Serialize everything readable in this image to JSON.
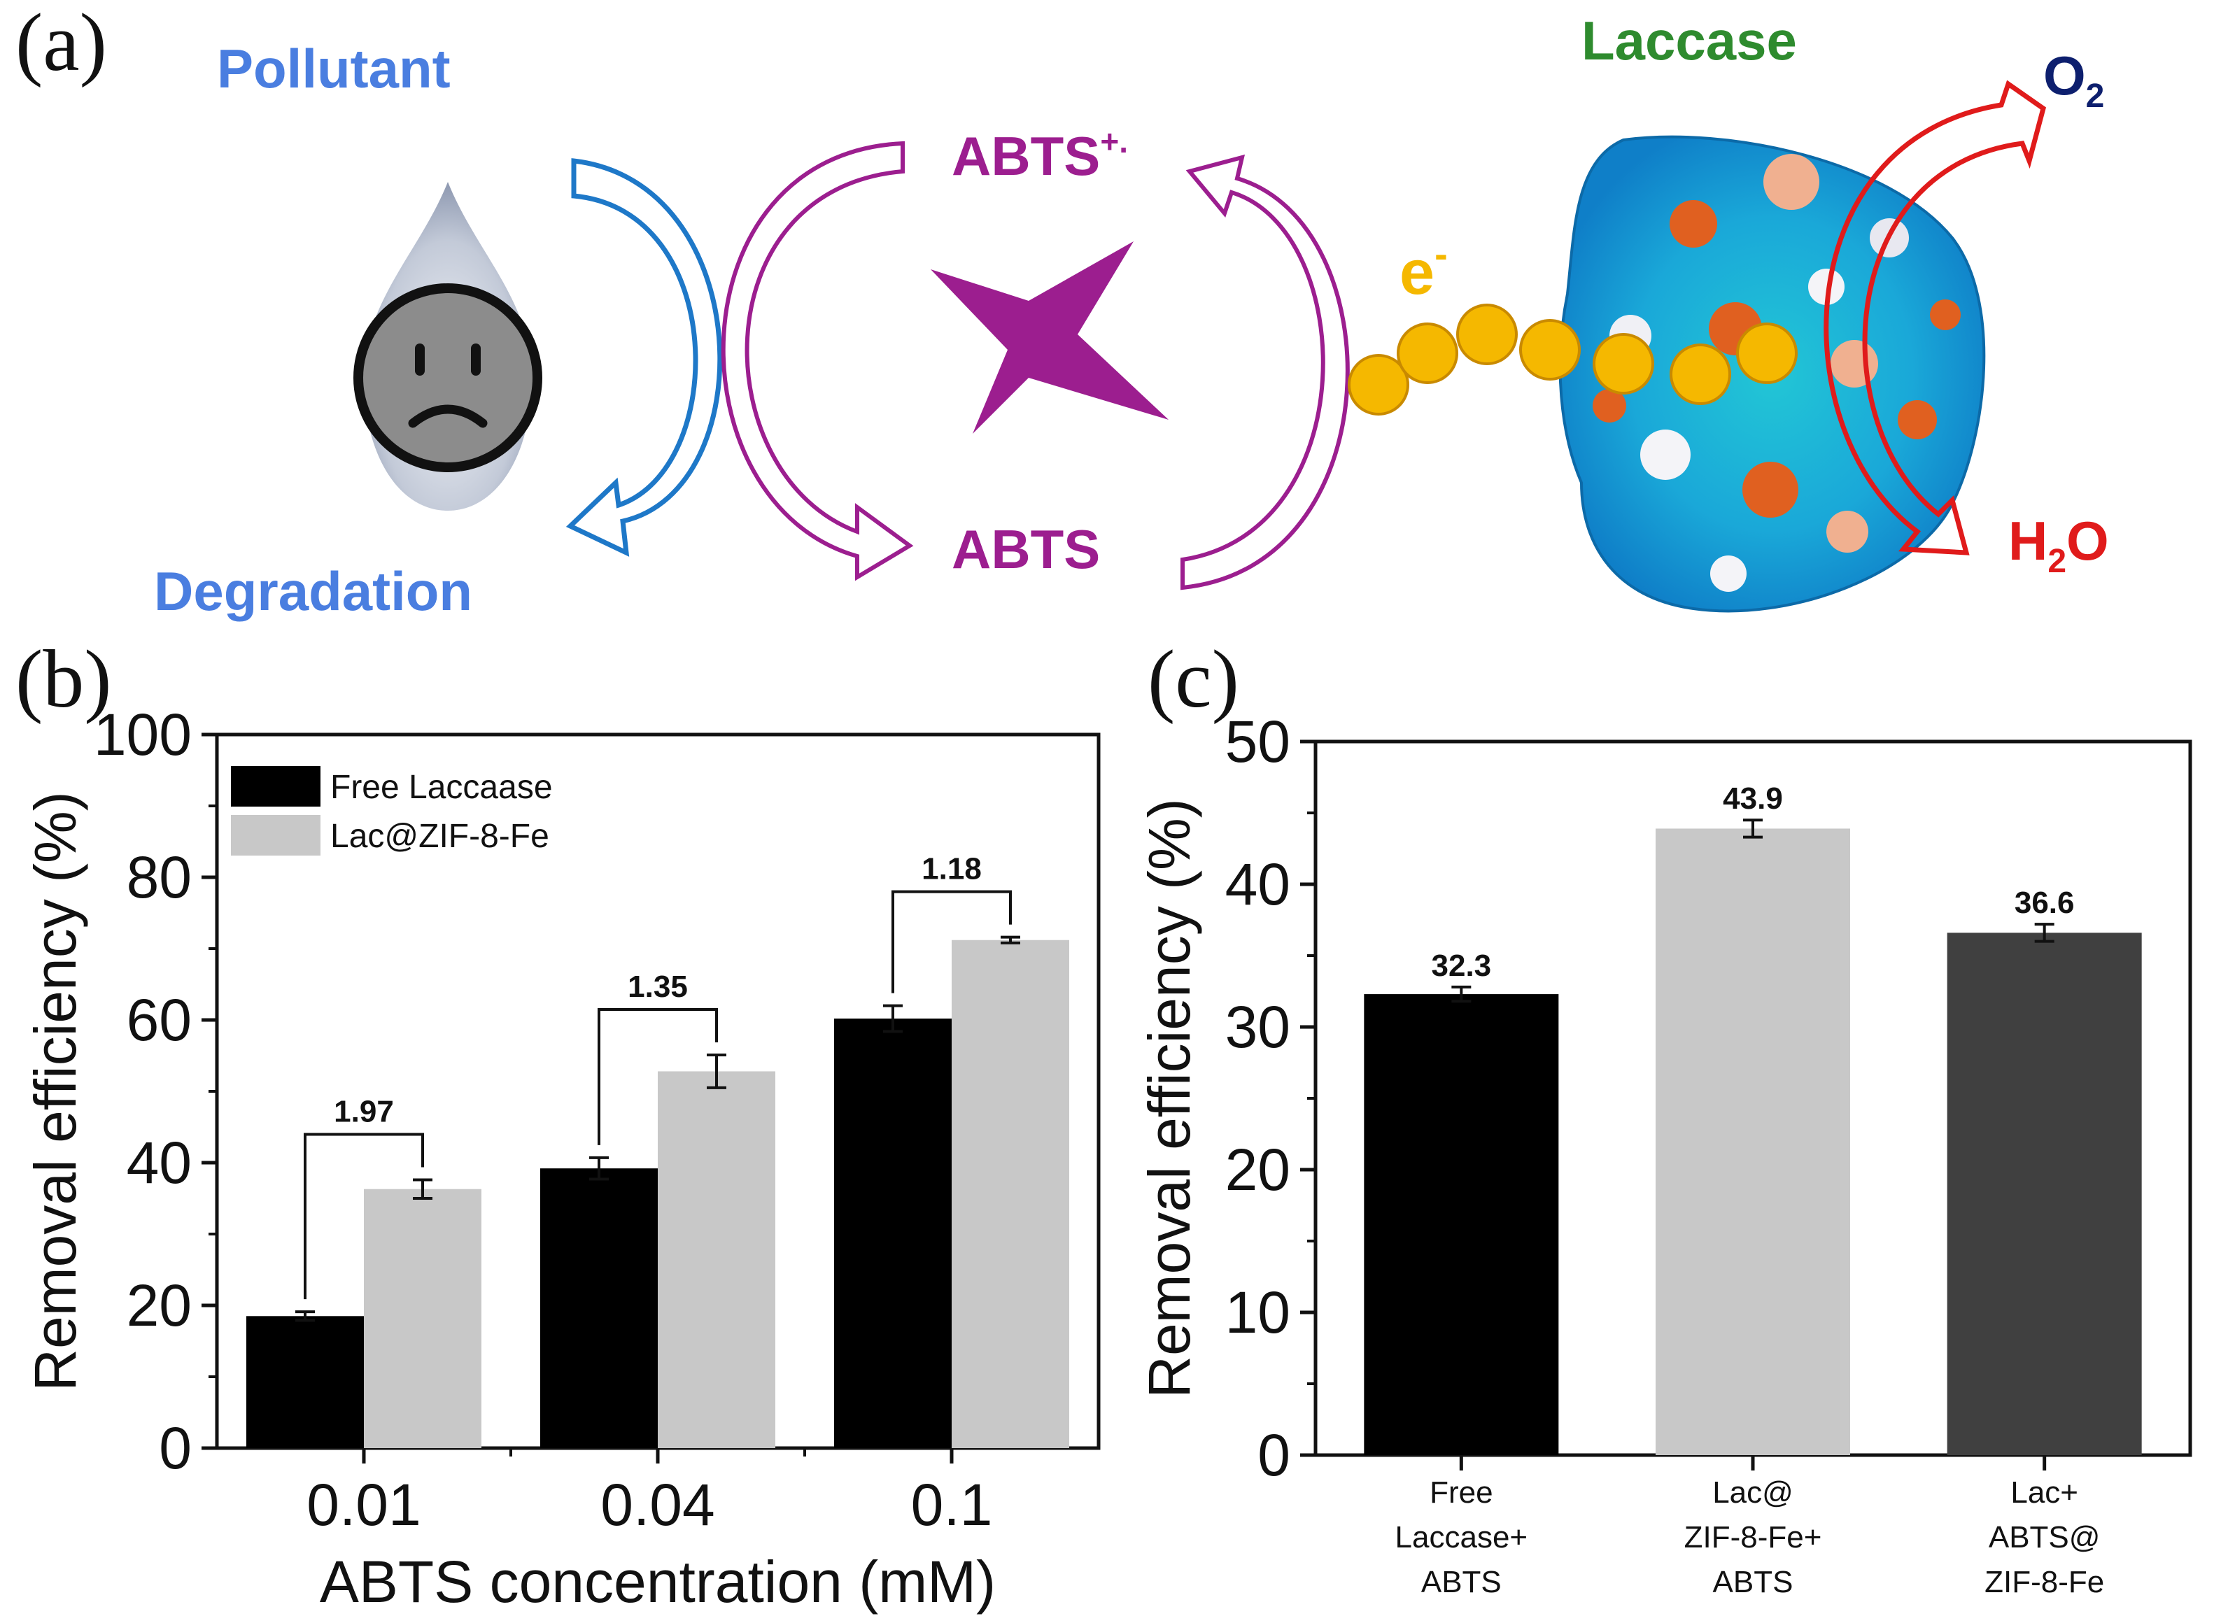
{
  "panel_labels": {
    "a": "(a)",
    "b": "(b)",
    "c": "(c)"
  },
  "schematic": {
    "pollutant": "Pollutant",
    "degradation": "Degradation",
    "abts_radical_base": "ABTS",
    "abts_radical_sup": "+.",
    "abts": "ABTS",
    "electron_base": "e",
    "electron_sup": "-",
    "laccase": "Laccase",
    "o2_base": "O",
    "o2_sub": "2",
    "h2o_h": "H",
    "h2o_sub": "2",
    "h2o_o": "O",
    "colors": {
      "pollutant": "#4a7ee0",
      "abts": "#9c1e8f",
      "electron": "#f5b800",
      "laccase": "#2e8b2e",
      "o2": "#0d1f6e",
      "h2o": "#e01b1b"
    }
  },
  "chart_data": [
    {
      "type": "bar",
      "panel": "(b)",
      "categories": [
        "0.01",
        "0.04",
        "0.1"
      ],
      "series": [
        {
          "name": "Free Laccaase",
          "color": "#000000",
          "values": [
            18.5,
            39.2,
            60.2
          ],
          "errors": [
            0.6,
            1.5,
            1.8
          ]
        },
        {
          "name": "Lac@ZIF-8-Fe",
          "color": "#c8c8c8",
          "values": [
            36.3,
            52.8,
            71.2
          ],
          "errors": [
            1.3,
            2.3,
            0.4
          ]
        }
      ],
      "brackets": [
        "1.97",
        "1.35",
        "1.18"
      ],
      "xlabel": "ABTS concentration (mM)",
      "ylabel": "Removal efficiency (%)",
      "ylim": [
        0,
        100
      ],
      "yticks": [
        "0",
        "20",
        "40",
        "60",
        "80",
        "100"
      ],
      "legend_position": "top-left"
    },
    {
      "type": "bar",
      "panel": "(c)",
      "categories": [
        [
          "Free",
          "Laccase+",
          "ABTS"
        ],
        [
          "Lac@",
          "ZIF-8-Fe+",
          "ABTS"
        ],
        [
          "Lac+",
          "ABTS@",
          "ZIF-8-Fe"
        ]
      ],
      "values": [
        32.3,
        43.9,
        36.6
      ],
      "errors": [
        0.5,
        0.6,
        0.6
      ],
      "value_labels": [
        "32.3",
        "43.9",
        "36.6"
      ],
      "colors": [
        "#000000",
        "#c8c8c8",
        "#404040"
      ],
      "ylabel": "Removal efficiency (%)",
      "ylim": [
        0,
        50
      ],
      "yticks": [
        "0",
        "10",
        "20",
        "30",
        "40",
        "50"
      ]
    }
  ]
}
